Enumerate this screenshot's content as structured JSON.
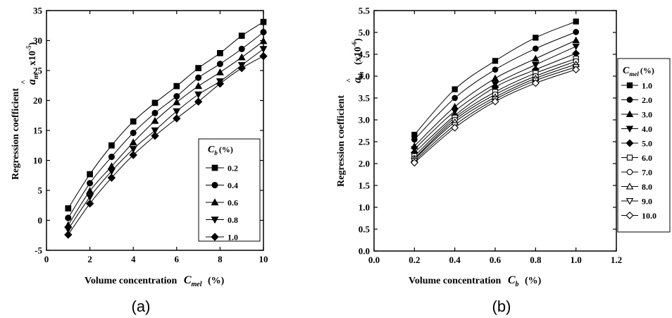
{
  "chart_data": [
    {
      "type": "line",
      "panel_label": "(a)",
      "xlabel": "Volume concentration",
      "xlabel_symbol": "C",
      "xlabel_subscript": "mel",
      "xlabel_unit": "(%)",
      "ylabel": "Regression coefficient",
      "ylabel_symbol": "a",
      "ylabel_subscript": "m",
      "ylabel_scale_base": "x10",
      "ylabel_scale_exp": "-5",
      "xlim": [
        0,
        10
      ],
      "ylim": [
        -5,
        35
      ],
      "xticks": [
        "0",
        "2",
        "4",
        "6",
        "8",
        "10"
      ],
      "yticks": [
        "-5",
        "0",
        "5",
        "10",
        "15",
        "20",
        "25",
        "30",
        "35"
      ],
      "x": [
        1,
        2,
        3,
        4,
        5,
        6,
        7,
        8,
        9,
        10
      ],
      "legend": {
        "title_symbol": "C",
        "title_subscript": "b",
        "title_unit": "(%)",
        "placement": "bottom-right"
      },
      "series": [
        {
          "name": "0.2",
          "marker": "square-filled",
          "values": [
            2.0,
            7.7,
            12.5,
            16.5,
            19.6,
            22.4,
            25.4,
            27.9,
            30.8,
            33.1
          ]
        },
        {
          "name": "0.4",
          "marker": "circle-filled",
          "values": [
            0.4,
            6.2,
            10.6,
            14.6,
            17.9,
            20.7,
            23.8,
            26.1,
            28.6,
            31.4
          ]
        },
        {
          "name": "0.6",
          "marker": "triangle-up-filled",
          "values": [
            -0.8,
            4.9,
            9.0,
            13.0,
            16.6,
            19.7,
            22.4,
            24.7,
            27.2,
            29.9
          ]
        },
        {
          "name": "0.8",
          "marker": "triangle-down-filled",
          "values": [
            -1.5,
            3.9,
            8.2,
            11.9,
            15.0,
            18.2,
            21.0,
            23.2,
            25.9,
            28.6
          ]
        },
        {
          "name": "1.0",
          "marker": "diamond-filled",
          "values": [
            -2.4,
            2.8,
            7.1,
            10.9,
            14.1,
            17.0,
            19.8,
            22.8,
            25.4,
            27.4
          ]
        }
      ]
    },
    {
      "type": "line",
      "panel_label": "(b)",
      "xlabel": "Volume concentration",
      "xlabel_symbol": "C",
      "xlabel_subscript": "b",
      "xlabel_unit": "(%)",
      "ylabel": "Regression coefficient",
      "ylabel_symbol": "a",
      "ylabel_subscript": "th",
      "ylabel_scale_base": "(x10",
      "ylabel_scale_exp": "-6",
      "ylabel_scale_close": ")",
      "xlim": [
        0,
        1.2
      ],
      "ylim": [
        0,
        5.5
      ],
      "xticks": [
        "0.0",
        "0.2",
        "0.4",
        "0.6",
        "0.8",
        "1.0",
        "1.2"
      ],
      "yticks": [
        "0.0",
        "0.5",
        "1.0",
        "1.5",
        "2.0",
        "2.5",
        "3.0",
        "3.5",
        "4.0",
        "4.5",
        "5.0",
        "5.5"
      ],
      "x": [
        0.2,
        0.4,
        0.6,
        0.8,
        1.0
      ],
      "legend": {
        "title_symbol": "C",
        "title_subscript": "mel",
        "title_unit": "(%)",
        "placement": "outside-right"
      },
      "series": [
        {
          "name": "1.0",
          "marker": "square-filled",
          "values": [
            2.66,
            3.7,
            4.35,
            4.88,
            5.25
          ]
        },
        {
          "name": "2.0",
          "marker": "circle-filled",
          "values": [
            2.55,
            3.5,
            4.15,
            4.63,
            5.01
          ]
        },
        {
          "name": "3.0",
          "marker": "triangle-up-filled",
          "values": [
            2.4,
            3.3,
            3.95,
            4.4,
            4.82
          ]
        },
        {
          "name": "4.0",
          "marker": "triangle-down-filled",
          "values": [
            2.33,
            3.2,
            3.82,
            4.26,
            4.68
          ]
        },
        {
          "name": "5.0",
          "marker": "diamond-filled",
          "values": [
            2.25,
            3.1,
            3.75,
            4.15,
            4.52
          ]
        },
        {
          "name": "6.0",
          "marker": "square-open",
          "values": [
            2.17,
            3.05,
            3.64,
            4.07,
            4.4
          ]
        },
        {
          "name": "7.0",
          "marker": "circle-open",
          "values": [
            2.12,
            3.0,
            3.58,
            4.0,
            4.34
          ]
        },
        {
          "name": "8.0",
          "marker": "triangle-up-open",
          "values": [
            2.1,
            2.95,
            3.52,
            3.95,
            4.27
          ]
        },
        {
          "name": "9.0",
          "marker": "triangle-down-open",
          "values": [
            2.06,
            2.88,
            3.47,
            3.9,
            4.21
          ]
        },
        {
          "name": "10.0",
          "marker": "diamond-open",
          "values": [
            2.02,
            2.82,
            3.42,
            3.84,
            4.15
          ]
        }
      ]
    }
  ]
}
